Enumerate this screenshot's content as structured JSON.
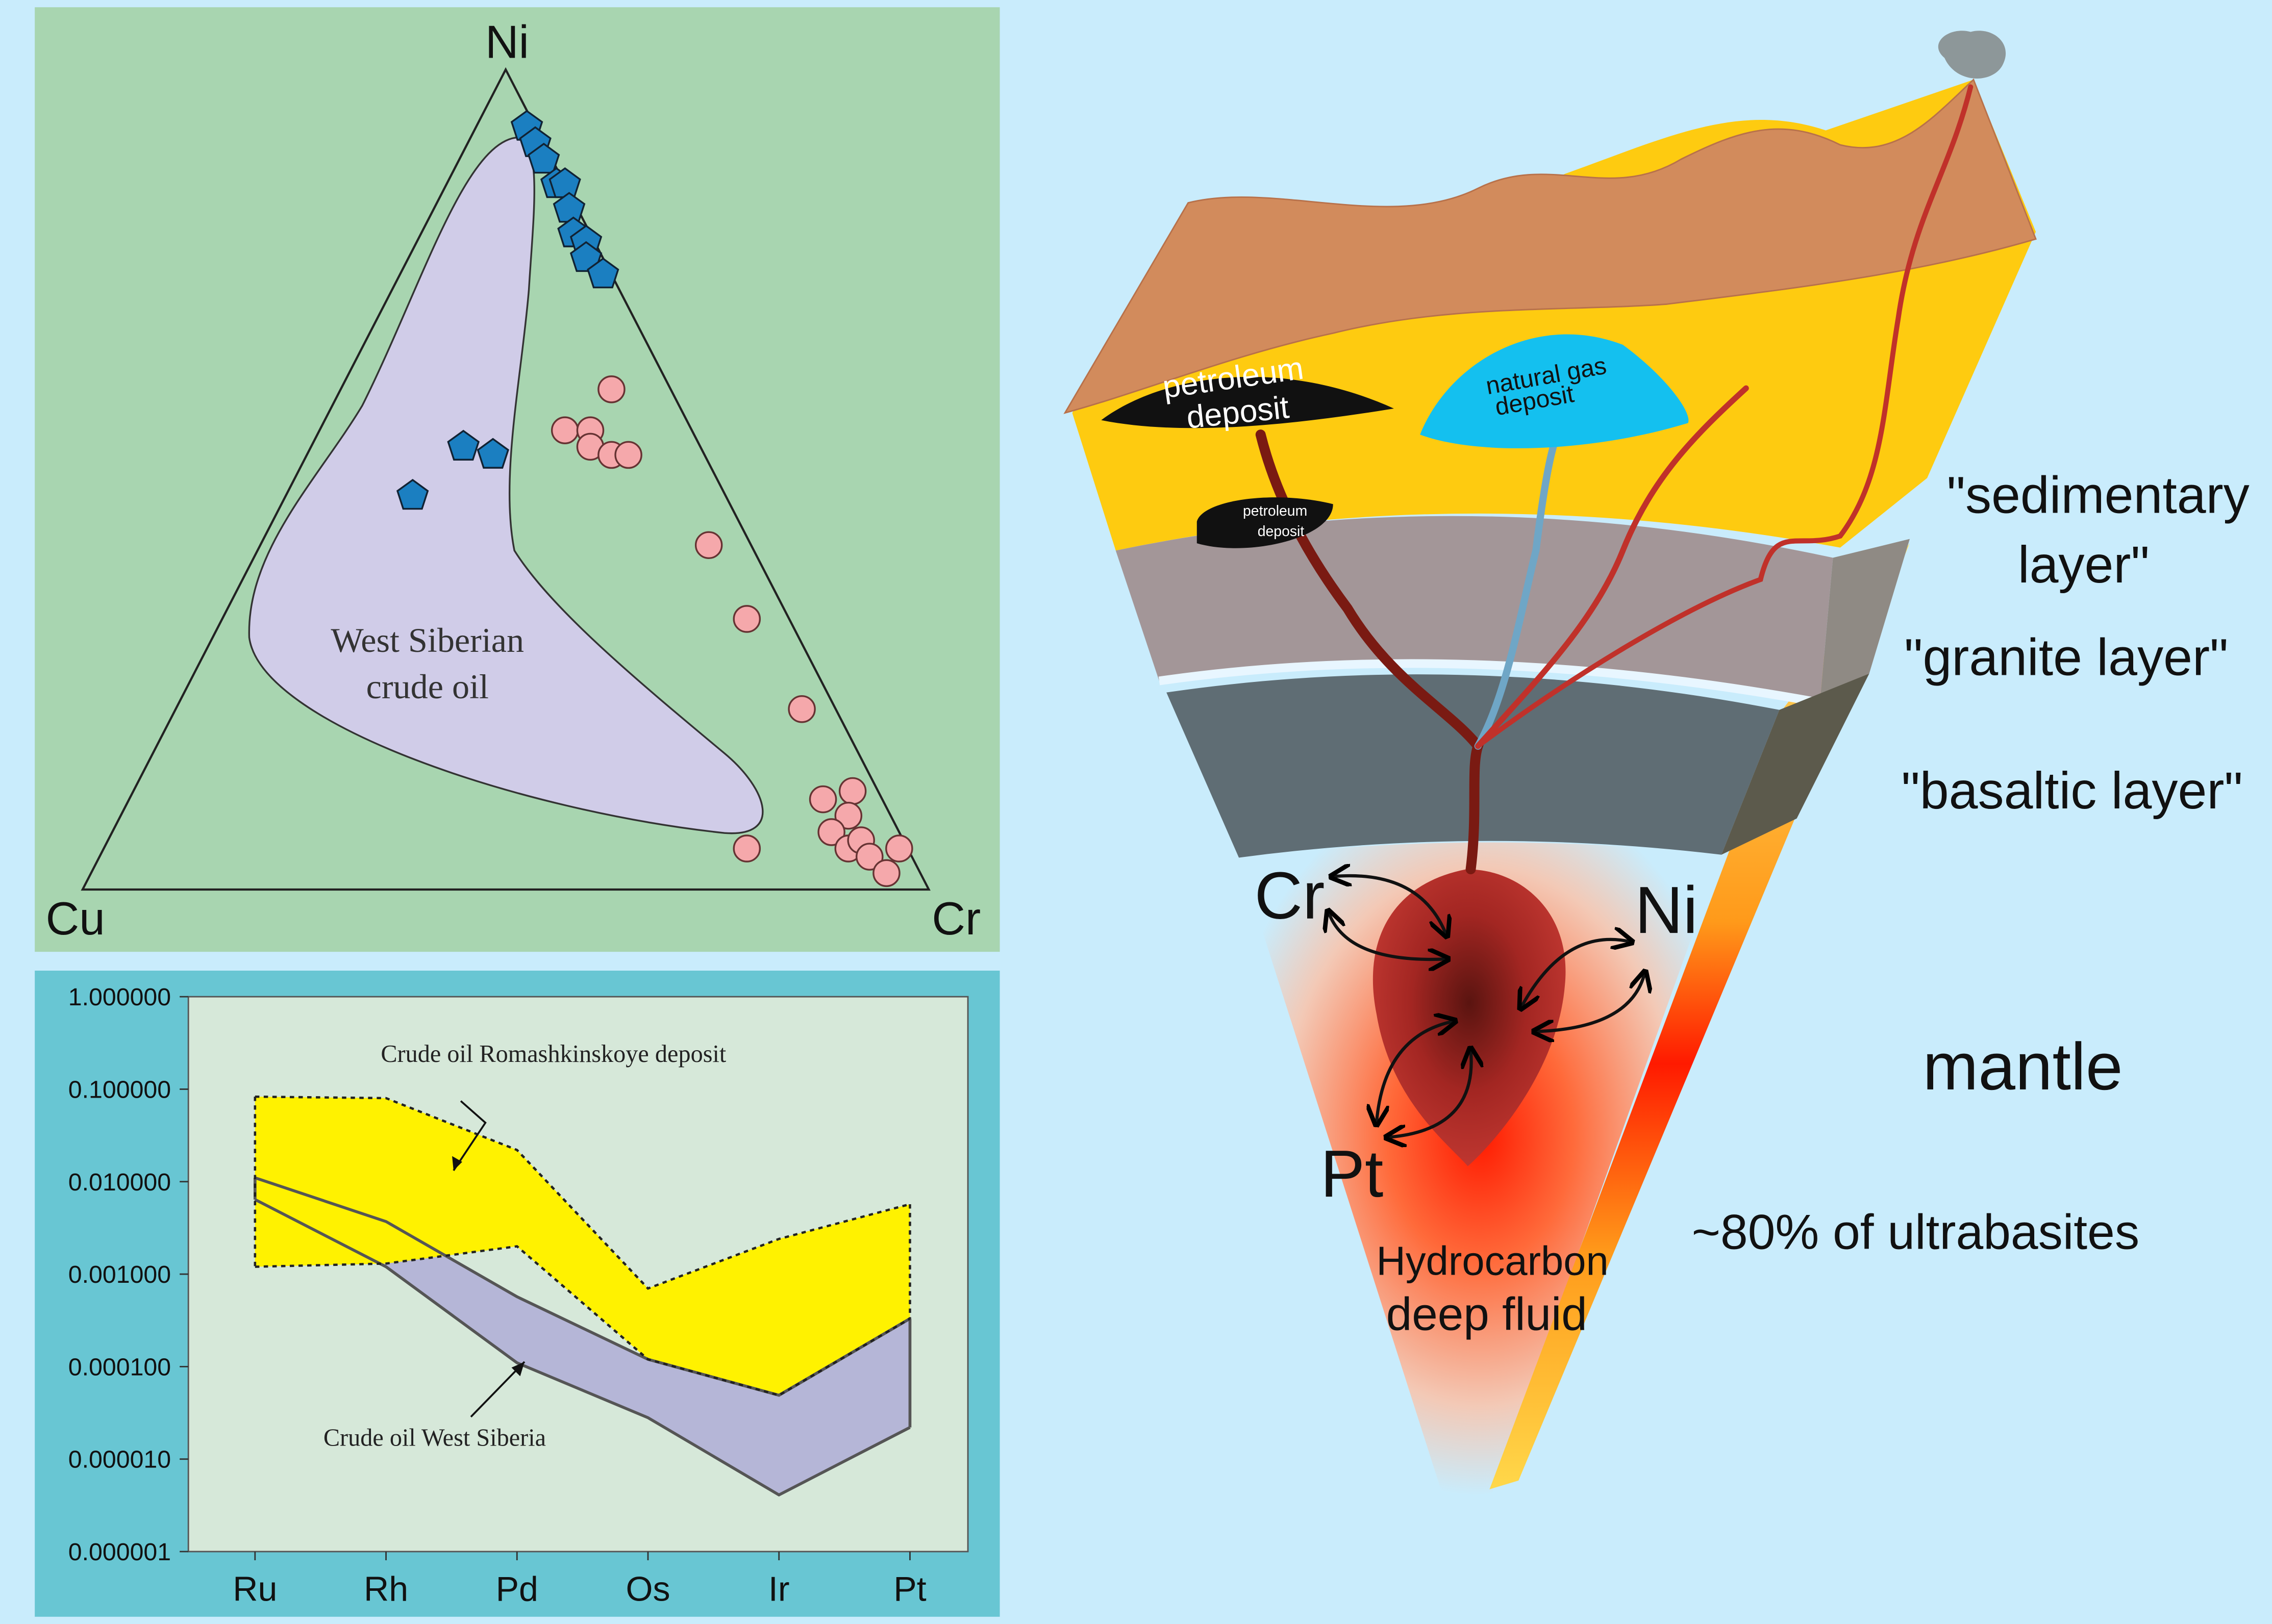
{
  "chart_data": [
    {
      "type": "ternary",
      "corners": [
        "Ni",
        "Cu",
        "Cr"
      ],
      "annotation": [
        "West Siberian",
        "crude oil"
      ],
      "series": [
        {
          "color": "#1b7fc1",
          "marker": "pentagon",
          "values": [
            [
              93,
              1,
              6
            ],
            [
              91,
              1,
              8
            ],
            [
              89,
              1,
              10
            ],
            [
              86,
              1,
              13
            ],
            [
              86,
              0,
              14
            ],
            [
              83,
              1,
              16
            ],
            [
              80,
              2,
              18
            ],
            [
              79,
              1,
              20
            ],
            [
              77,
              2,
              21
            ],
            [
              75,
              1,
              24
            ],
            [
              54,
              28,
              18
            ],
            [
              53,
              25,
              22
            ],
            [
              48,
              37,
              15
            ]
          ]
        },
        {
          "color": "#f5a8ab",
          "marker": "circle",
          "values": [
            [
              61,
              7,
              32
            ],
            [
              56,
              15,
              29
            ],
            [
              56,
              12,
              32
            ],
            [
              54,
              13,
              33
            ],
            [
              53,
              11,
              36
            ],
            [
              53,
              9,
              38
            ],
            [
              42,
              5,
              53
            ],
            [
              33,
              5,
              62
            ],
            [
              22,
              4,
              74
            ],
            [
              11,
              7,
              82
            ],
            [
              12,
              3,
              85
            ],
            [
              9,
              5,
              86
            ],
            [
              7,
              8,
              85
            ],
            [
              5,
              7,
              88
            ],
            [
              6,
              5,
              89
            ],
            [
              4,
              5,
              91
            ],
            [
              2,
              4,
              94
            ],
            [
              5,
              1,
              94
            ],
            [
              5,
              19,
              76
            ]
          ]
        }
      ]
    },
    {
      "type": "band",
      "log": true,
      "categories": [
        "Ru",
        "Rh",
        "Pd",
        "Os",
        "Ir",
        "Pt"
      ],
      "ylim": [
        1e-06,
        1
      ],
      "yticks": [
        {
          "value": 1,
          "label": "1.000000"
        },
        {
          "value": 0.1,
          "label": "0.100000"
        },
        {
          "value": 0.01,
          "label": "0.010000"
        },
        {
          "value": 0.001,
          "label": "0.001000"
        },
        {
          "value": 0.0001,
          "label": "0.000100"
        },
        {
          "value": 1e-05,
          "label": "0.000010"
        },
        {
          "value": 1e-06,
          "label": "0.000001"
        }
      ],
      "series": [
        {
          "name": "Crude oil Romashkinskoye deposit",
          "color": "#fff200",
          "upper": [
            0.083,
            0.08,
            0.022,
            0.0007,
            0.0024,
            0.0057
          ],
          "lower": [
            0.0012,
            0.0013,
            0.002,
            0.00012,
            4.9e-05,
            0.00033
          ]
        },
        {
          "name": "Crude oil West Siberia",
          "color": "#a9a6d6",
          "upper": [
            0.011,
            0.0037,
            0.00057,
            0.00012,
            4.9e-05,
            0.00033
          ],
          "lower": [
            0.0064,
            0.0012,
            0.00011,
            2.8e-05,
            4.1e-06,
            2.2e-05
          ]
        }
      ]
    }
  ],
  "diagram": {
    "petroleum_deposit": [
      "petroleum",
      "deposit"
    ],
    "gas_deposit": [
      "natural gas",
      "deposit"
    ],
    "small_deposit": [
      "petroleum",
      "deposit"
    ],
    "sedimentary": [
      "\"sedimentary",
      "layer\""
    ],
    "granite": "\"granite layer\"",
    "basaltic": "\"basaltic layer\"",
    "mantle": "mantle",
    "ultrabasites": "~80% of ultrabasites",
    "elements": [
      "Cr",
      "Ni",
      "Pt"
    ],
    "fluid": [
      "Hydrocarbon",
      "deep fluid"
    ]
  }
}
